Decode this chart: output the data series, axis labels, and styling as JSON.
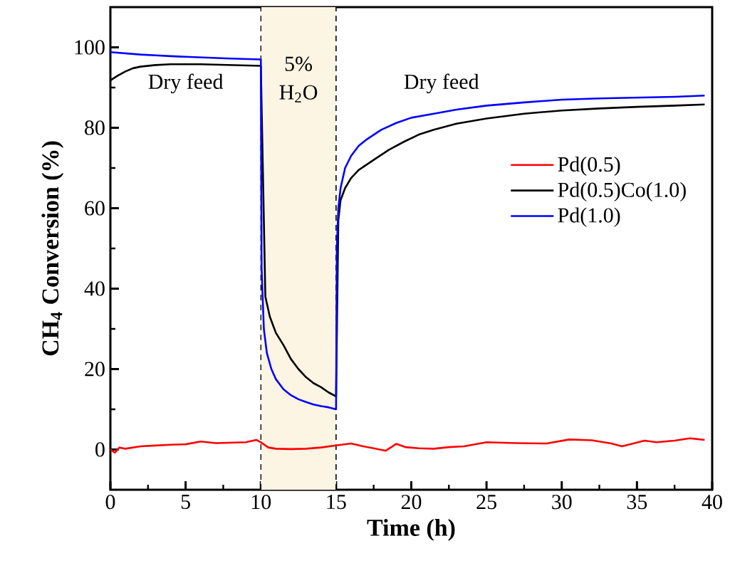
{
  "chart_data": {
    "type": "line",
    "xlabel": "Time (h)",
    "ylabel": "CH$_{4}$ Conversion (%)",
    "xlim": [
      0,
      40
    ],
    "xticks": [
      0,
      5,
      10,
      15,
      20,
      25,
      30,
      35,
      40
    ],
    "ylim": [
      -10,
      110
    ],
    "yticks": [
      0,
      20,
      40,
      60,
      80,
      100
    ],
    "legend": "right",
    "grid": false,
    "marker": "none",
    "line_style": "solid",
    "annotations": [
      "Dry feed",
      "5% H$_{2}$O",
      "Dry feed"
    ],
    "bands": [
      {
        "axis": "x",
        "from": 10,
        "to": 15,
        "color": "#fcf5e3"
      }
    ],
    "ref_lines": [
      {
        "axis": "x",
        "value": 10,
        "line_style": "dashed",
        "color": "#000000"
      },
      {
        "axis": "x",
        "value": 15,
        "line_style": "dashed",
        "color": "#000000"
      }
    ],
    "series": [
      {
        "name": "Pd(0.5)",
        "color": "#ff0000",
        "x": [
          0,
          0.3,
          0.6,
          1,
          2,
          3,
          4,
          5,
          6,
          7,
          8,
          9,
          9.7,
          10,
          10.5,
          11,
          12,
          13,
          14,
          15,
          16,
          16.8,
          17.5,
          18.3,
          19,
          19.6,
          20.5,
          21.5,
          22.5,
          23.5,
          25,
          27,
          29,
          30.5,
          32,
          33.3,
          34,
          35.5,
          36.3,
          37.5,
          38.5,
          39.5
        ],
        "values": [
          0,
          -0.8,
          0.5,
          0.2,
          0.8,
          1,
          1.2,
          1.3,
          2,
          1.6,
          1.7,
          1.8,
          2.4,
          1.8,
          0.5,
          0.2,
          0.1,
          0.2,
          0.5,
          1,
          1.5,
          0.8,
          0.3,
          -0.3,
          1.4,
          0.6,
          0.3,
          0.2,
          0.6,
          0.8,
          1.8,
          1.6,
          1.5,
          2.5,
          2.3,
          1.5,
          0.8,
          2.2,
          1.8,
          2.2,
          2.8,
          2.4
        ]
      },
      {
        "name": "Pd(0.5)Co(1.0)",
        "color": "#000000",
        "x": [
          0,
          0.5,
          1,
          1.5,
          2,
          3,
          4,
          6,
          8,
          10,
          10.3,
          10.6,
          11,
          11.5,
          12,
          12.5,
          13,
          13.5,
          14,
          14.5,
          15,
          15.15,
          15.3,
          15.6,
          16,
          16.5,
          17.5,
          18.5,
          19.5,
          20.5,
          21.5,
          23,
          25,
          27.5,
          30,
          32.5,
          35,
          37.5,
          39.5
        ],
        "values": [
          91.8,
          93,
          94,
          94.8,
          95.2,
          95.6,
          95.8,
          95.8,
          95.6,
          95.4,
          38,
          33,
          29,
          26,
          22.5,
          20,
          18,
          16.5,
          15.5,
          14.2,
          13.2,
          57,
          62,
          65,
          67.5,
          69.5,
          72,
          74.5,
          76.5,
          78.3,
          79.5,
          81,
          82.3,
          83.5,
          84.3,
          84.8,
          85.2,
          85.5,
          85.8
        ]
      },
      {
        "name": "Pd(1.0)",
        "color": "#0000ff",
        "x": [
          0,
          1,
          2,
          3,
          4,
          6,
          8,
          10,
          10.05,
          10.2,
          10.4,
          10.7,
          11,
          11.5,
          12,
          12.5,
          13,
          13.5,
          14,
          14.5,
          15,
          15.05,
          15.15,
          15.3,
          15.6,
          16,
          16.5,
          17,
          18,
          19,
          20,
          21.5,
          23,
          25,
          27.5,
          30,
          32.5,
          35,
          37.5,
          39.5
        ],
        "values": [
          98.8,
          98.5,
          98.2,
          98,
          97.8,
          97.5,
          97.2,
          97,
          45,
          30,
          24,
          20,
          17.5,
          15,
          13.5,
          12.5,
          11.8,
          11.2,
          10.8,
          10.5,
          10,
          50,
          60,
          65,
          70,
          73,
          75.5,
          77,
          79.5,
          81.2,
          82.5,
          83.5,
          84.5,
          85.5,
          86.3,
          87,
          87.3,
          87.5,
          87.7,
          88
        ]
      }
    ]
  }
}
